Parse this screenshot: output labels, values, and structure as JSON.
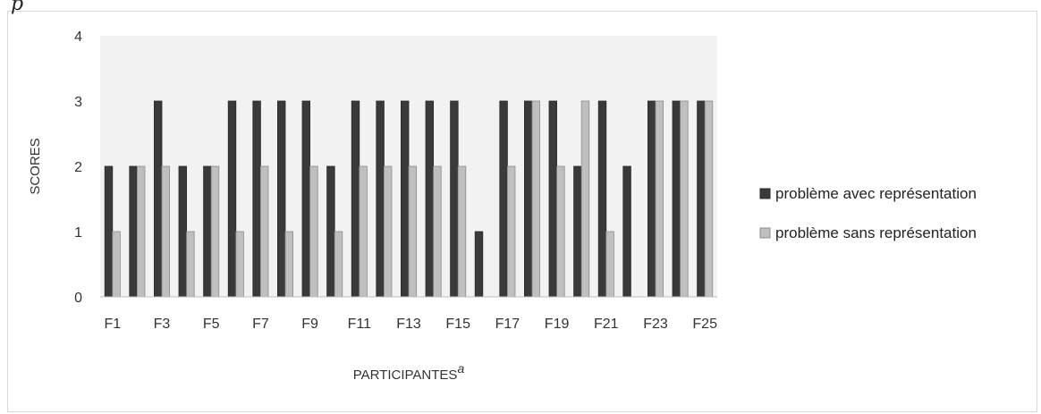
{
  "figure": {
    "corner_glyph": "p"
  },
  "chart_data": {
    "type": "bar",
    "categories": [
      "F1",
      "F2",
      "F3",
      "F4",
      "F5",
      "F6",
      "F7",
      "F8",
      "F9",
      "F10",
      "F11",
      "F12",
      "F13",
      "F14",
      "F15",
      "F16",
      "F17",
      "F18",
      "F19",
      "F20",
      "F21",
      "F22",
      "F23",
      "F24",
      "F25"
    ],
    "x_tick_labels": [
      "F1",
      "F3",
      "F5",
      "F7",
      "F9",
      "F11",
      "F13",
      "F15",
      "F17",
      "F19",
      "F21",
      "F23",
      "F25"
    ],
    "series": [
      {
        "name": "problème avec représentation",
        "color": "#3a3a3a",
        "values": [
          2,
          2,
          3,
          2,
          2,
          3,
          3,
          3,
          3,
          2,
          3,
          3,
          3,
          3,
          3,
          1,
          3,
          3,
          3,
          2,
          3,
          2,
          3,
          3,
          3
        ]
      },
      {
        "name": "problème sans représentation",
        "color": "#bfbfbf",
        "values": [
          1,
          2,
          2,
          1,
          2,
          1,
          2,
          1,
          2,
          1,
          2,
          2,
          2,
          2,
          2,
          0,
          2,
          3,
          2,
          3,
          1,
          0,
          3,
          3,
          3
        ]
      }
    ],
    "title": "",
    "xlabel": "PARTICIPANTES",
    "xlabel_superscript": "a",
    "ylabel": "SCORES",
    "ylim": [
      0,
      4
    ],
    "y_ticks": [
      "0",
      "1",
      "2",
      "3",
      "4"
    ],
    "grid": false,
    "plot_background": "#f2f2f2",
    "legend_position": "right"
  }
}
